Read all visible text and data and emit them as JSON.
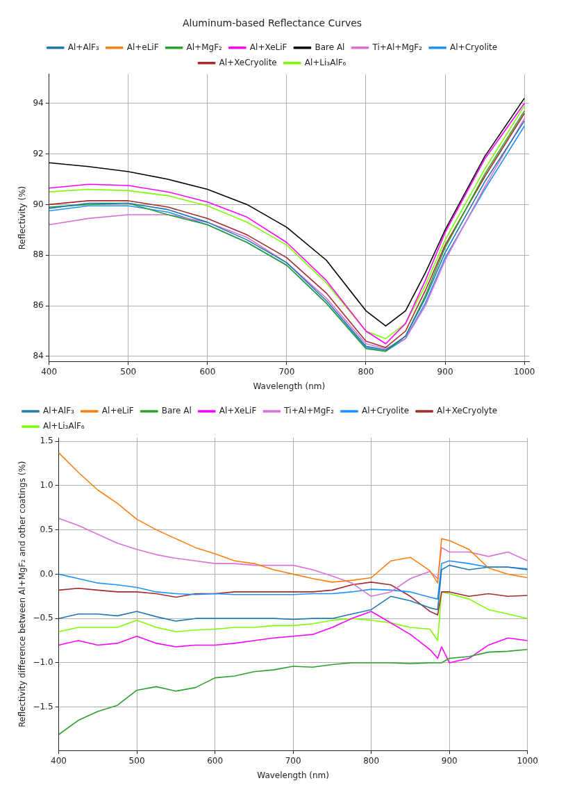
{
  "chart_data": [
    {
      "type": "line",
      "title": "Aluminum-based Reflectance Curves",
      "xlabel": "Wavelength (nm)",
      "ylabel": "Reflectivity (%)",
      "x": [
        400,
        450,
        500,
        550,
        600,
        650,
        700,
        750,
        800,
        825,
        850,
        875,
        900,
        950,
        1000
      ],
      "series": [
        {
          "name": "Al+AlF₃",
          "color": "#1f77b4",
          "values": [
            89.85,
            90.05,
            90.05,
            89.8,
            89.3,
            88.6,
            87.7,
            86.2,
            84.4,
            84.25,
            84.8,
            86.3,
            88.1,
            90.9,
            93.3
          ]
        },
        {
          "name": "Al+eLiF",
          "color": "#ff7f0e",
          "values": [
            null,
            null,
            null,
            null,
            null,
            null,
            null,
            null,
            null,
            null,
            null,
            null,
            null,
            null,
            null
          ]
        },
        {
          "name": "Al+MgF₂",
          "color": "#2ca02c",
          "values": [
            89.9,
            90.0,
            90.05,
            89.6,
            89.2,
            88.5,
            87.6,
            86.1,
            84.3,
            84.2,
            84.8,
            86.4,
            88.3,
            91.2,
            93.7
          ]
        },
        {
          "name": "Al+XeLiF",
          "color": "#ff00ff",
          "values": [
            90.65,
            90.8,
            90.75,
            90.5,
            90.1,
            89.5,
            88.5,
            87.0,
            85.0,
            84.5,
            85.3,
            87.0,
            88.9,
            91.8,
            94.0
          ]
        },
        {
          "name": "Bare Al",
          "color": "#000000",
          "values": [
            91.65,
            91.5,
            91.3,
            91.0,
            90.6,
            90.0,
            89.1,
            87.8,
            85.8,
            85.2,
            85.8,
            87.3,
            89.0,
            91.9,
            94.2
          ]
        },
        {
          "name": "Ti+Al+MgF₂",
          "color": "#da70d6",
          "values": [
            89.2,
            89.45,
            89.6,
            89.6,
            89.3,
            88.7,
            87.7,
            86.3,
            84.5,
            84.3,
            84.7,
            86.0,
            87.8,
            90.7,
            93.4
          ]
        },
        {
          "name": "Al+Cryolite",
          "color": "#1e90ff",
          "values": [
            89.75,
            89.95,
            89.95,
            89.7,
            89.2,
            88.5,
            87.6,
            86.1,
            84.35,
            84.2,
            84.7,
            86.1,
            87.9,
            90.6,
            93.1
          ]
        },
        {
          "name": "Al+XeCryolite",
          "color": "#a52a2a",
          "values": [
            90.0,
            90.15,
            90.15,
            89.9,
            89.45,
            88.8,
            87.9,
            86.5,
            84.6,
            84.35,
            85.0,
            86.6,
            88.4,
            91.1,
            93.6
          ]
        },
        {
          "name": "Al+Li₃AlF₆",
          "color": "#7cfc00",
          "values": [
            90.5,
            90.6,
            90.55,
            90.35,
            89.95,
            89.3,
            88.4,
            86.9,
            85.0,
            84.7,
            85.3,
            86.8,
            88.6,
            91.4,
            93.9
          ]
        }
      ],
      "xlim": [
        400,
        1006
      ],
      "ylim": [
        83.8,
        95.15
      ],
      "xticks": [
        400,
        500,
        600,
        700,
        800,
        900,
        1000
      ],
      "yticks": [
        84,
        86,
        88,
        90,
        92,
        94
      ],
      "grid": true,
      "legend": "top"
    },
    {
      "type": "line",
      "xlabel": "Wavelength (nm)",
      "ylabel": "Reflectivity difference between Al+MgF₂ and other coatings (%)",
      "x": [
        400,
        425,
        450,
        475,
        500,
        525,
        550,
        575,
        600,
        625,
        650,
        675,
        700,
        725,
        750,
        775,
        800,
        825,
        850,
        875,
        885,
        890,
        900,
        925,
        950,
        975,
        1000
      ],
      "series": [
        {
          "name": "Al+AlF₃",
          "color": "#1f77b4",
          "values": [
            -0.5,
            -0.45,
            -0.45,
            -0.47,
            -0.42,
            -0.48,
            -0.53,
            -0.5,
            -0.5,
            -0.5,
            -0.5,
            -0.5,
            -0.51,
            -0.5,
            -0.5,
            -0.45,
            -0.4,
            -0.25,
            -0.3,
            -0.38,
            -0.4,
            0.05,
            0.1,
            0.05,
            0.08,
            0.08,
            0.05
          ]
        },
        {
          "name": "Al+eLiF",
          "color": "#ff7f0e",
          "values": [
            1.37,
            1.15,
            0.95,
            0.8,
            0.62,
            0.5,
            0.4,
            0.3,
            0.23,
            0.15,
            0.12,
            0.05,
            0.0,
            -0.05,
            -0.09,
            -0.07,
            -0.04,
            0.15,
            0.19,
            0.04,
            -0.1,
            0.4,
            0.38,
            0.28,
            0.07,
            0.0,
            -0.04
          ]
        },
        {
          "name": "Bare Al",
          "color": "#2ca02c",
          "values": [
            -1.81,
            -1.65,
            -1.55,
            -1.48,
            -1.31,
            -1.27,
            -1.32,
            -1.28,
            -1.17,
            -1.15,
            -1.1,
            -1.08,
            -1.04,
            -1.05,
            -1.02,
            -1.0,
            -1.0,
            -1.0,
            -1.01,
            -1.0,
            -1.0,
            -1.0,
            -0.95,
            -0.93,
            -0.88,
            -0.87,
            -0.85
          ]
        },
        {
          "name": "Al+XeLiF",
          "color": "#ff00ff",
          "values": [
            -0.8,
            -0.75,
            -0.8,
            -0.78,
            -0.7,
            -0.78,
            -0.82,
            -0.8,
            -0.8,
            -0.78,
            -0.75,
            -0.72,
            -0.7,
            -0.68,
            -0.6,
            -0.5,
            -0.42,
            -0.55,
            -0.68,
            -0.85,
            -0.95,
            -0.82,
            -1.0,
            -0.95,
            -0.8,
            -0.72,
            -0.75
          ]
        },
        {
          "name": "Ti+Al+MgF₂",
          "color": "#da70d6",
          "values": [
            0.63,
            0.55,
            0.45,
            0.35,
            0.28,
            0.22,
            0.18,
            0.15,
            0.12,
            0.12,
            0.1,
            0.1,
            0.1,
            0.05,
            -0.02,
            -0.1,
            -0.25,
            -0.2,
            -0.05,
            0.03,
            -0.05,
            0.3,
            0.25,
            0.25,
            0.2,
            0.25,
            0.15
          ]
        },
        {
          "name": "Al+Cryolite",
          "color": "#1e90ff",
          "values": [
            0.0,
            -0.05,
            -0.1,
            -0.12,
            -0.15,
            -0.2,
            -0.22,
            -0.23,
            -0.22,
            -0.23,
            -0.23,
            -0.23,
            -0.23,
            -0.22,
            -0.22,
            -0.2,
            -0.17,
            -0.18,
            -0.2,
            -0.26,
            -0.28,
            0.12,
            0.15,
            0.12,
            0.08,
            0.08,
            0.06
          ]
        },
        {
          "name": "Al+XeCryolyte",
          "color": "#a52a2a",
          "values": [
            -0.18,
            -0.16,
            -0.18,
            -0.2,
            -0.2,
            -0.22,
            -0.26,
            -0.22,
            -0.22,
            -0.2,
            -0.2,
            -0.2,
            -0.2,
            -0.2,
            -0.18,
            -0.12,
            -0.09,
            -0.12,
            -0.25,
            -0.42,
            -0.46,
            -0.2,
            -0.2,
            -0.25,
            -0.22,
            -0.25,
            -0.24
          ]
        },
        {
          "name": "Al+Li₃AlF₆",
          "color": "#7cfc00",
          "values": [
            -0.65,
            -0.6,
            -0.6,
            -0.6,
            -0.52,
            -0.6,
            -0.65,
            -0.63,
            -0.62,
            -0.6,
            -0.6,
            -0.58,
            -0.58,
            -0.56,
            -0.52,
            -0.5,
            -0.52,
            -0.55,
            -0.6,
            -0.62,
            -0.75,
            -0.2,
            -0.22,
            -0.28,
            -0.4,
            -0.45,
            -0.5
          ]
        }
      ],
      "xlim": [
        400,
        1000
      ],
      "ylim": [
        -1.99,
        1.54
      ],
      "xticks": [
        400,
        500,
        600,
        700,
        800,
        900,
        1000
      ],
      "yticks": [
        {
          "value": -1.5,
          "label": "−1.5"
        },
        {
          "value": -1,
          "label": "−1.0"
        },
        {
          "value": -0.5,
          "label": "−0.5"
        },
        {
          "value": 0,
          "label": "0.0"
        },
        0.5,
        {
          "value": 1,
          "label": "1.0"
        },
        1.5
      ],
      "grid": true,
      "legend": "top left"
    }
  ]
}
